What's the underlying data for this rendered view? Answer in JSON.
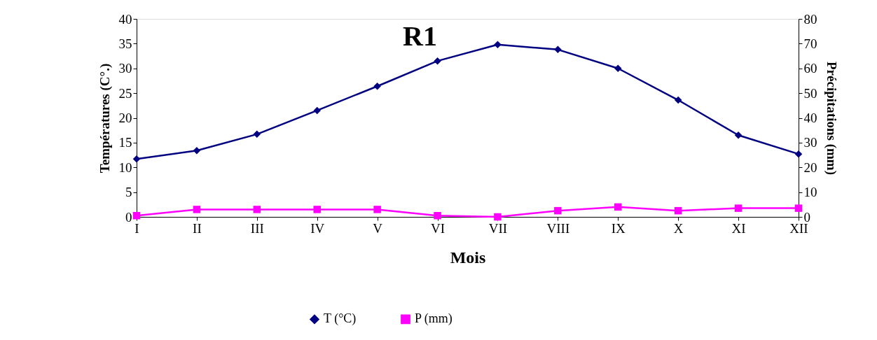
{
  "chart_data": {
    "type": "line",
    "title": "R1",
    "xlabel": "Mois",
    "ylabel": "Températures (C°.)",
    "y2label": "Précipitations (mm)",
    "categories": [
      "I",
      "II",
      "III",
      "IV",
      "V",
      "VI",
      "VII",
      "VIII",
      "IX",
      "X",
      "XI",
      "XII"
    ],
    "series": [
      {
        "name": "T (°C)",
        "color": "#000080",
        "marker": "diamond",
        "values": [
          11.7,
          13.4,
          16.7,
          21.5,
          26.4,
          31.5,
          34.8,
          33.8,
          30.0,
          23.6,
          16.5,
          12.7
        ]
      },
      {
        "name": "P (mm)",
        "color": "#ff00ff",
        "marker": "square",
        "axis": "y2",
        "values": [
          0.5,
          3,
          3,
          3,
          3,
          0.5,
          0,
          2.5,
          4,
          2.5,
          3.5,
          3.5
        ]
      }
    ],
    "ylim": [
      0,
      40
    ],
    "yticks": [
      0,
      5,
      10,
      15,
      20,
      25,
      30,
      35,
      40
    ],
    "y2lim": [
      0,
      80
    ],
    "y2ticks": [
      0,
      10,
      20,
      30,
      40,
      50,
      60,
      70,
      80
    ],
    "grid": false,
    "legend": "bottom"
  }
}
